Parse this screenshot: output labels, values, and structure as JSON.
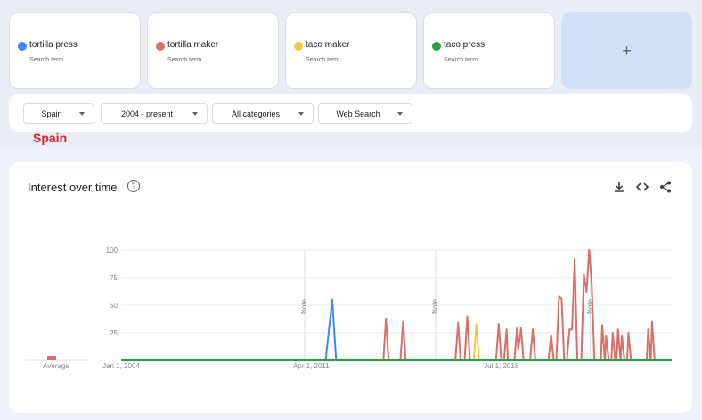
{
  "terms": [
    {
      "label": "tortilla press",
      "sub": "Search term",
      "color": "#4285f4"
    },
    {
      "label": "tortilla maker",
      "sub": "Search term",
      "color": "#db6e66"
    },
    {
      "label": "taco maker",
      "sub": "Search term",
      "color": "#f5c842"
    },
    {
      "label": "taco press",
      "sub": "Search term",
      "color": "#27a045"
    }
  ],
  "add_term": {
    "label": "+"
  },
  "filters": {
    "region": "Spain",
    "time": "2004 - present",
    "category": "All categories",
    "search_type": "Web Search"
  },
  "region_label": "Spain",
  "chart": {
    "title": "Interest over time",
    "help_icon": "question-circle-icon",
    "toolbar_icons": [
      "download-icon",
      "embed-code-icon",
      "share-icon"
    ],
    "average_label": "Average"
  },
  "chart_data": {
    "type": "line",
    "title": "Interest over time",
    "xlabel": "",
    "ylabel": "",
    "ylim": [
      0,
      100
    ],
    "yticks": [
      25,
      50,
      75,
      100
    ],
    "xlim": [
      2004.0,
      2025.0
    ],
    "xticks": [
      {
        "label": "Jan 1, 2004",
        "x": 2004.0
      },
      {
        "label": "Apr 1, 2011",
        "x": 2011.25
      },
      {
        "label": "Jul 1, 2018",
        "x": 2018.5
      }
    ],
    "notes": [
      {
        "label": "Note",
        "x": 2011.0
      },
      {
        "label": "Note",
        "x": 2016.0
      },
      {
        "label": "Note",
        "x": 2021.9
      }
    ],
    "grid": true,
    "legend": "none",
    "series": [
      {
        "name": "tortilla press",
        "color": "#4285f4",
        "points": [
          [
            2004.0,
            0
          ],
          [
            2011.8,
            0
          ],
          [
            2012.05,
            55
          ],
          [
            2012.2,
            0
          ],
          [
            2025.0,
            0
          ]
        ],
        "average": 0
      },
      {
        "name": "tortilla maker",
        "color": "#db6e66",
        "points": [
          [
            2004.0,
            0
          ],
          [
            2014.0,
            0
          ],
          [
            2014.1,
            38
          ],
          [
            2014.2,
            0
          ],
          [
            2014.65,
            0
          ],
          [
            2014.75,
            35
          ],
          [
            2014.85,
            0
          ],
          [
            2016.75,
            0
          ],
          [
            2016.85,
            34
          ],
          [
            2016.95,
            0
          ],
          [
            2017.1,
            0
          ],
          [
            2017.2,
            40
          ],
          [
            2017.3,
            0
          ],
          [
            2018.3,
            0
          ],
          [
            2018.4,
            33
          ],
          [
            2018.5,
            0
          ],
          [
            2018.6,
            0
          ],
          [
            2018.7,
            28
          ],
          [
            2018.75,
            0
          ],
          [
            2019.0,
            0
          ],
          [
            2019.1,
            30
          ],
          [
            2019.15,
            10
          ],
          [
            2019.25,
            29
          ],
          [
            2019.35,
            0
          ],
          [
            2019.6,
            0
          ],
          [
            2019.7,
            28
          ],
          [
            2019.8,
            0
          ],
          [
            2020.3,
            0
          ],
          [
            2020.4,
            23
          ],
          [
            2020.5,
            0
          ],
          [
            2020.6,
            0
          ],
          [
            2020.7,
            58
          ],
          [
            2020.8,
            56
          ],
          [
            2020.9,
            0
          ],
          [
            2021.0,
            0
          ],
          [
            2021.1,
            28
          ],
          [
            2021.2,
            28
          ],
          [
            2021.3,
            92
          ],
          [
            2021.4,
            0
          ],
          [
            2021.55,
            0
          ],
          [
            2021.65,
            78
          ],
          [
            2021.75,
            62
          ],
          [
            2021.85,
            100
          ],
          [
            2021.95,
            70
          ],
          [
            2022.05,
            0
          ],
          [
            2022.3,
            0
          ],
          [
            2022.35,
            32
          ],
          [
            2022.45,
            0
          ],
          [
            2022.5,
            22
          ],
          [
            2022.6,
            0
          ],
          [
            2022.7,
            0
          ],
          [
            2022.75,
            25
          ],
          [
            2022.85,
            0
          ],
          [
            2022.9,
            0
          ],
          [
            2022.95,
            28
          ],
          [
            2023.05,
            0
          ],
          [
            2023.1,
            22
          ],
          [
            2023.2,
            0
          ],
          [
            2023.3,
            0
          ],
          [
            2023.35,
            25
          ],
          [
            2023.45,
            0
          ],
          [
            2024.05,
            0
          ],
          [
            2024.1,
            28
          ],
          [
            2024.2,
            0
          ],
          [
            2024.25,
            35
          ],
          [
            2024.35,
            0
          ],
          [
            2025.0,
            0
          ]
        ],
        "average": 4
      },
      {
        "name": "taco maker",
        "color": "#f5c842",
        "points": [
          [
            2004.0,
            0
          ],
          [
            2017.45,
            0
          ],
          [
            2017.55,
            33
          ],
          [
            2017.65,
            0
          ],
          [
            2025.0,
            0
          ]
        ],
        "average": 0
      },
      {
        "name": "taco press",
        "color": "#27a045",
        "points": [
          [
            2004.0,
            0
          ],
          [
            2025.0,
            0
          ]
        ],
        "average": 0
      }
    ]
  }
}
